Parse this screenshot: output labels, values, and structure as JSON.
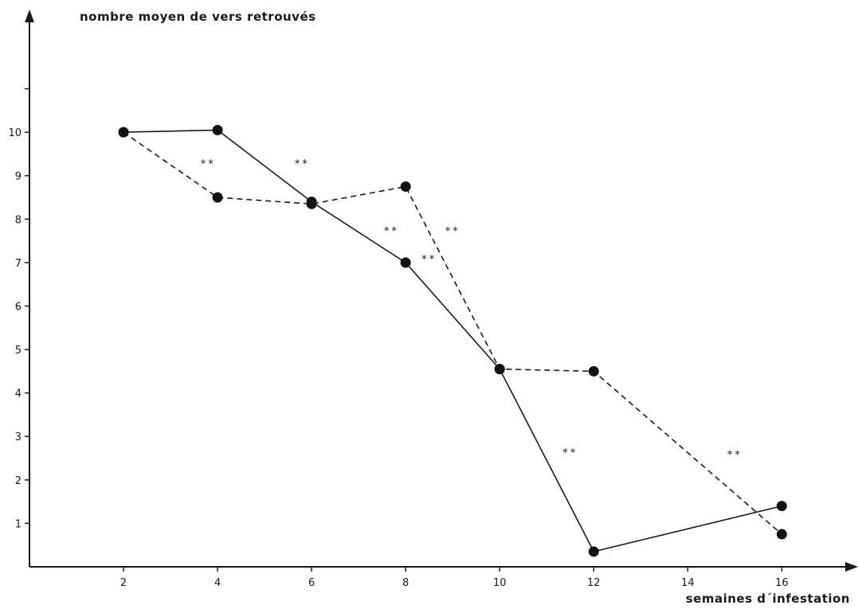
{
  "chart_data": {
    "type": "line",
    "ylabel": "nombre moyen de vers retrouvés",
    "xlabel": "semaines d´infestation",
    "xlim": [
      0,
      17.4
    ],
    "ylim": [
      0,
      10.9
    ],
    "x_ticks": [
      "2",
      "4",
      "6",
      "8",
      "10",
      "12",
      "14",
      "16"
    ],
    "x_tick_values": [
      2,
      4,
      6,
      8,
      10,
      12,
      14,
      16
    ],
    "y_ticks": [
      "1",
      "2",
      "3",
      "4",
      "5",
      "6",
      "7",
      "8",
      "9",
      "10"
    ],
    "y_tick_values": [
      1,
      2,
      3,
      4,
      5,
      6,
      7,
      8,
      9,
      10
    ],
    "y_extra_ticks": [
      11
    ],
    "grid": false,
    "legend": "none",
    "series": [
      {
        "style": "solid",
        "x": [
          2,
          4,
          6,
          8,
          10,
          12,
          16
        ],
        "y": [
          10.0,
          10.05,
          8.4,
          7.0,
          4.55,
          0.35,
          1.4
        ]
      },
      {
        "style": "dashed",
        "x": [
          2,
          4,
          6,
          8,
          10,
          12,
          16
        ],
        "y": [
          10.0,
          8.5,
          8.35,
          8.75,
          4.55,
          4.5,
          0.75
        ]
      }
    ],
    "annotations": [
      {
        "text": "**",
        "x": 3.8,
        "y": 9.2
      },
      {
        "text": "**",
        "x": 5.8,
        "y": 9.2
      },
      {
        "text": "**",
        "x": 7.7,
        "y": 7.65
      },
      {
        "text": "**",
        "x": 9.0,
        "y": 7.65
      },
      {
        "text": "**",
        "x": 8.5,
        "y": 7.0
      },
      {
        "text": "**",
        "x": 11.5,
        "y": 2.55
      },
      {
        "text": "**",
        "x": 15.0,
        "y": 2.5
      }
    ]
  }
}
